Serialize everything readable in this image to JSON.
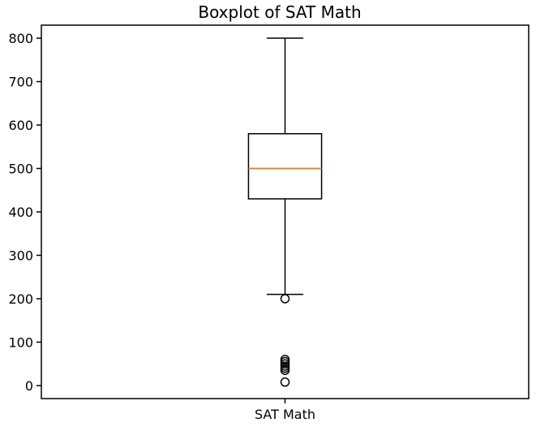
{
  "chart_data": {
    "type": "boxplot",
    "title": "Boxplot of SAT Math",
    "xlabel": "",
    "ylabel": "",
    "categories": [
      "SAT Math"
    ],
    "ylim": [
      -30,
      830
    ],
    "yticks": [
      0,
      100,
      200,
      300,
      400,
      500,
      600,
      700,
      800
    ],
    "grid": false,
    "boxes": [
      {
        "category": "SAT Math",
        "whisker_low": 210,
        "q1": 430,
        "median": 500,
        "q3": 580,
        "whisker_high": 800,
        "outliers": [
          200,
          60,
          55,
          50,
          45,
          40,
          35,
          8
        ]
      }
    ],
    "colors": {
      "box": "#000000",
      "median": "#e07a2f",
      "outlier": "#000000"
    }
  }
}
